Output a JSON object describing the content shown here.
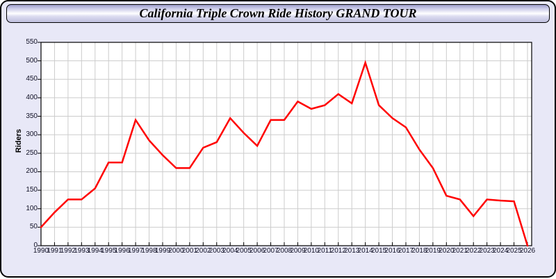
{
  "window": {
    "background": "#E8E8F7",
    "border_color": "#000000"
  },
  "header": {
    "title": "California Triple Crown Ride History GRAND TOUR"
  },
  "chart_data": {
    "type": "line",
    "title": "California Triple Crown Ride History GRAND TOUR",
    "xlabel": "",
    "ylabel": "Riders",
    "ylim": [
      0,
      550
    ],
    "ytick_step": 50,
    "grid": true,
    "grid_color": "#cccccc",
    "plot_bg": "#ffffff",
    "line_color": "#FF0000",
    "x": [
      1990,
      1991,
      1992,
      1993,
      1994,
      1995,
      1996,
      1997,
      1998,
      1999,
      2000,
      2001,
      2002,
      2003,
      2004,
      2005,
      2006,
      2007,
      2008,
      2009,
      2010,
      2011,
      2012,
      2013,
      2014,
      2015,
      2016,
      2017,
      2018,
      2019,
      2020,
      2021,
      2022,
      2023,
      2024,
      2025,
      2026
    ],
    "series": [
      {
        "name": "Riders",
        "color": "#FF0000",
        "values": [
          50,
          90,
          125,
          125,
          155,
          225,
          225,
          340,
          285,
          245,
          210,
          210,
          265,
          280,
          345,
          305,
          270,
          340,
          340,
          390,
          370,
          380,
          410,
          385,
          495,
          380,
          345,
          320,
          260,
          210,
          135,
          125,
          80,
          125,
          122,
          120,
          0
        ]
      }
    ]
  }
}
